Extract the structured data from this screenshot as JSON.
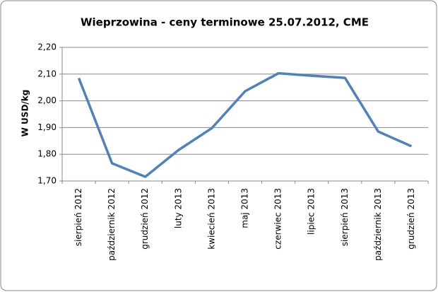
{
  "chart_data": {
    "type": "line",
    "title": "Wieprzowina - ceny terminowe 25.07.2012, CME",
    "y_label": "W USD/kg",
    "categories": [
      "sierpień 2012",
      "październik 2012",
      "grudzień 2012",
      "luty 2013",
      "kwiecień 2013",
      "maj 2013",
      "czerwiec 2013",
      "lipiec 2013",
      "sierpień 2013",
      "październik 2013",
      "grudzień 2013"
    ],
    "series": [
      {
        "name": "Wieprzowina",
        "color": "#4f81bd",
        "values": [
          2.085,
          1.766,
          1.716,
          1.816,
          1.898,
          2.036,
          2.103,
          2.094,
          2.086,
          1.885,
          1.83
        ]
      }
    ],
    "ylim": [
      1.7,
      2.2
    ],
    "yticks": [
      {
        "value": 1.7,
        "label": "1,70"
      },
      {
        "value": 1.8,
        "label": "1,80"
      },
      {
        "value": 1.9,
        "label": "1,90"
      },
      {
        "value": 2.0,
        "label": "2,00"
      },
      {
        "value": 2.1,
        "label": "2,10"
      },
      {
        "value": 2.2,
        "label": "2,20"
      }
    ],
    "grid": true
  }
}
